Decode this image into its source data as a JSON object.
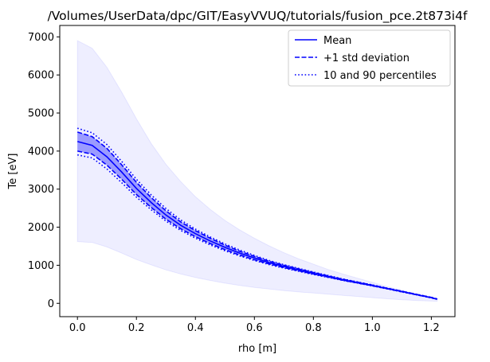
{
  "chart_data": {
    "type": "line",
    "title": "/Volumes/UserData/dpc/GIT/EasyVVUQ/tutorials/fusion_pce.2t873i4f",
    "xlabel": "rho [m]",
    "ylabel": "Te [eV]",
    "xlim": [
      -0.06,
      1.28
    ],
    "ylim": [
      -350,
      7300
    ],
    "xticks": [
      0.0,
      0.2,
      0.4,
      0.6,
      0.8,
      1.0,
      1.2
    ],
    "xtick_labels": [
      "0.0",
      "0.2",
      "0.4",
      "0.6",
      "0.8",
      "1.0",
      "1.2"
    ],
    "yticks": [
      0,
      1000,
      2000,
      3000,
      4000,
      5000,
      6000,
      7000
    ],
    "ytick_labels": [
      "0",
      "1000",
      "2000",
      "3000",
      "4000",
      "5000",
      "6000",
      "7000"
    ],
    "grid": false,
    "legend_position": "top-right",
    "colors": {
      "line": "#0000ff",
      "band_fill": "#0000ff"
    },
    "x": [
      0.0,
      0.05,
      0.1,
      0.15,
      0.2,
      0.25,
      0.3,
      0.35,
      0.4,
      0.45,
      0.5,
      0.55,
      0.6,
      0.65,
      0.7,
      0.75,
      0.8,
      0.85,
      0.9,
      0.95,
      1.0,
      1.05,
      1.1,
      1.15,
      1.2,
      1.22
    ],
    "series": [
      {
        "name": "Mean",
        "style": "solid",
        "values": [
          4250,
          4150,
          3850,
          3450,
          3020,
          2650,
          2320,
          2050,
          1830,
          1640,
          1470,
          1320,
          1190,
          1070,
          970,
          880,
          790,
          705,
          620,
          545,
          470,
          390,
          310,
          230,
          150,
          110
        ]
      },
      {
        "name": "+1 std deviation",
        "style": "dashed",
        "role": "upper",
        "values": [
          4500,
          4380,
          4070,
          3640,
          3180,
          2780,
          2430,
          2140,
          1910,
          1710,
          1530,
          1370,
          1235,
          1105,
          1000,
          905,
          810,
          720,
          632,
          555,
          478,
          397,
          316,
          236,
          155,
          114
        ]
      },
      {
        "name": "",
        "style": "dashed",
        "role": "lower",
        "values": [
          4000,
          3920,
          3630,
          3260,
          2860,
          2520,
          2210,
          1960,
          1750,
          1570,
          1410,
          1270,
          1145,
          1035,
          940,
          855,
          770,
          690,
          608,
          535,
          462,
          383,
          304,
          224,
          145,
          106
        ]
      },
      {
        "name": "10 and 90 percentiles",
        "style": "dotted",
        "role": "upper",
        "values": [
          4600,
          4480,
          4170,
          3730,
          3260,
          2850,
          2490,
          2190,
          1950,
          1745,
          1560,
          1400,
          1260,
          1125,
          1015,
          918,
          822,
          730,
          640,
          561,
          483,
          401,
          319,
          238,
          157,
          116
        ]
      },
      {
        "name": "",
        "style": "dotted",
        "role": "lower",
        "values": [
          3900,
          3820,
          3530,
          3170,
          2790,
          2460,
          2160,
          1915,
          1710,
          1535,
          1380,
          1245,
          1125,
          1018,
          925,
          842,
          758,
          680,
          600,
          529,
          457,
          379,
          301,
          222,
          143,
          104
        ]
      }
    ],
    "outer_band": {
      "upper": [
        6900,
        6700,
        6200,
        5550,
        4850,
        4200,
        3650,
        3200,
        2800,
        2470,
        2180,
        1930,
        1710,
        1510,
        1330,
        1170,
        1030,
        890,
        770,
        660,
        550,
        440,
        340,
        240,
        160,
        120
      ],
      "lower": [
        1620,
        1600,
        1480,
        1320,
        1150,
        1010,
        880,
        770,
        680,
        600,
        530,
        470,
        420,
        375,
        335,
        300,
        270,
        240,
        210,
        180,
        150,
        120,
        95,
        75,
        60,
        55
      ]
    }
  }
}
